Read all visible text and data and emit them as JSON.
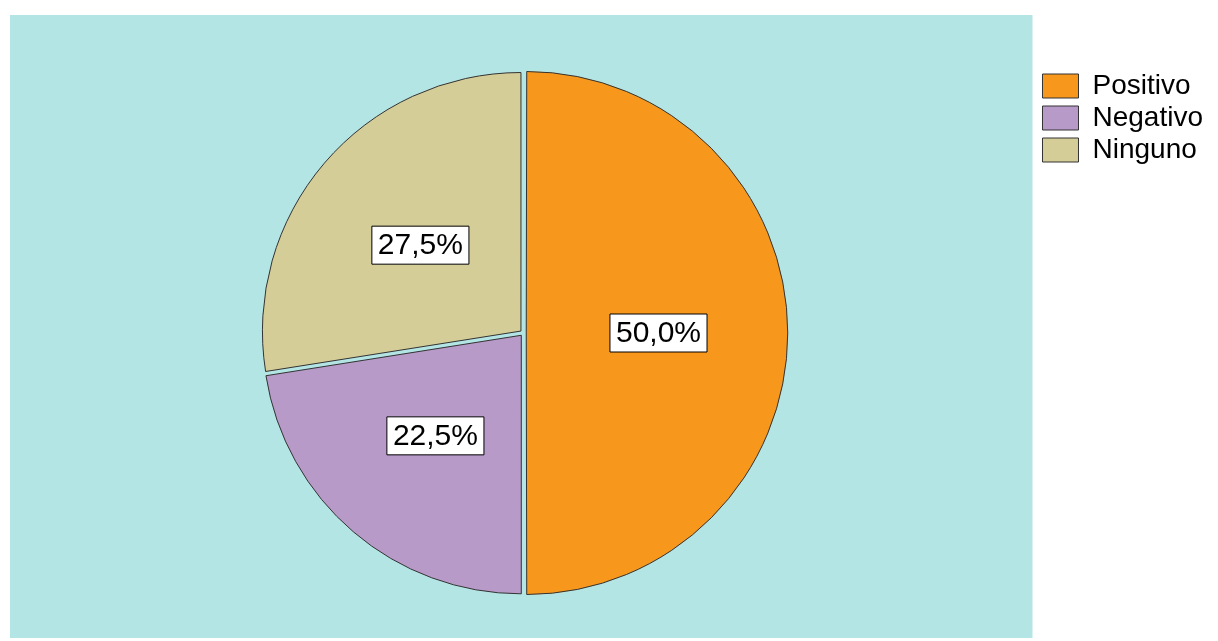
{
  "chart_data": {
    "type": "pie",
    "categories": [
      "Positivo",
      "Negativo",
      "Ninguno"
    ],
    "values": [
      50.0,
      22.5,
      27.5
    ],
    "colors": [
      "#f7981d",
      "#b89ac8",
      "#d4cd98"
    ],
    "value_labels": [
      "50,0%",
      "22,5%",
      "27,5%"
    ],
    "legend": "top right"
  }
}
